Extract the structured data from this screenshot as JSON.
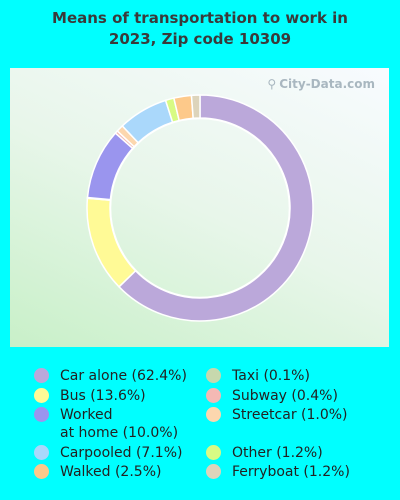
{
  "title": {
    "line1": "Means of transportation to work in",
    "line2": "2023, Zip code 10309"
  },
  "watermark": {
    "icon": "magnifier-icon",
    "text": "City-Data.com"
  },
  "chart_data": {
    "type": "pie",
    "donut": true,
    "legend_placement": "bottom",
    "slices": [
      {
        "name": "Car alone",
        "value": 62.4,
        "color": "#bba8da",
        "legend": "Car alone (62.4%)"
      },
      {
        "name": "Bus",
        "value": 13.6,
        "color": "#fffa96",
        "legend": "Bus (13.6%)"
      },
      {
        "name": "Worked at home",
        "value": 10.0,
        "color": "#9a95ee",
        "legend_line1": "Worked",
        "legend_line2": "at home (10.0%)"
      },
      {
        "name": "Carpooled",
        "value": 7.1,
        "color": "#aad8fb",
        "legend": "Carpooled (7.1%)"
      },
      {
        "name": "Walked",
        "value": 2.5,
        "color": "#fdc98a",
        "legend": "Walked (2.5%)"
      },
      {
        "name": "Taxi",
        "value": 0.1,
        "color": "#c7d8ad",
        "legend": "Taxi (0.1%)"
      },
      {
        "name": "Subway",
        "value": 0.4,
        "color": "#f4b9b4",
        "legend": "Subway (0.4%)"
      },
      {
        "name": "Streetcar",
        "value": 1.0,
        "color": "#fcd7ae",
        "legend": "Streetcar (1.0%)"
      },
      {
        "name": "Other",
        "value": 1.2,
        "color": "#d8fb84",
        "legend": "Other (1.2%)"
      },
      {
        "name": "Ferryboat",
        "value": 1.2,
        "color": "#ddd4bb",
        "legend": "Ferryboat (1.2%)"
      }
    ]
  }
}
